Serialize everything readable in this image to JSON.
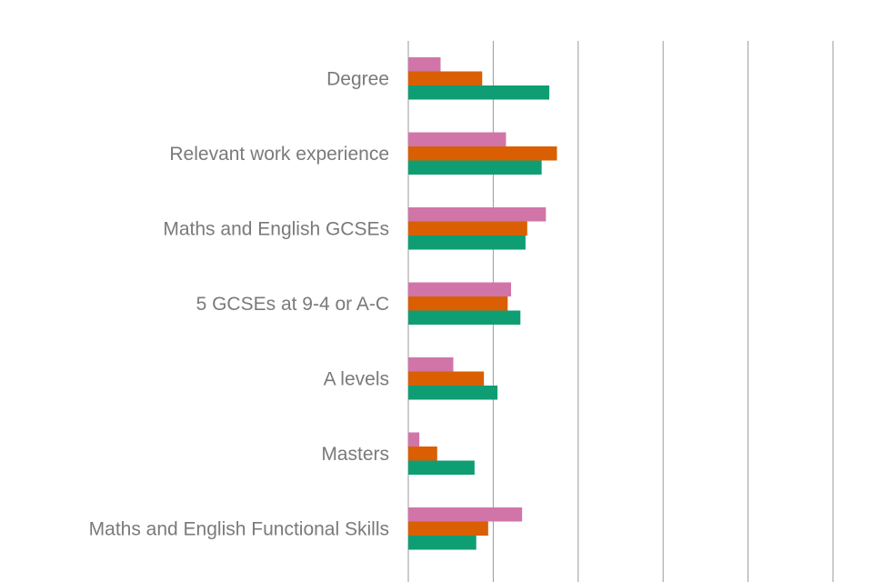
{
  "chart_data": {
    "type": "bar",
    "orientation": "horizontal",
    "categories": [
      "Degree",
      "Relevant work experience",
      "Maths and English GCSEs",
      "5 GCSEs at 9-4 or A-C",
      "A levels",
      "Masters",
      "Maths and English Functional Skills"
    ],
    "series": [
      {
        "color": "#d175a8",
        "values": [
          3.8,
          11.5,
          16.2,
          12.1,
          5.3,
          1.3,
          13.4
        ]
      },
      {
        "color": "#d95f02",
        "values": [
          8.7,
          17.5,
          14.0,
          11.7,
          8.9,
          3.4,
          9.4
        ]
      },
      {
        "color": "#0f9e74",
        "values": [
          16.6,
          15.7,
          13.8,
          13.2,
          10.5,
          7.8,
          8.0
        ]
      }
    ],
    "xlim": [
      0,
      50
    ],
    "x_gridlines": [
      0,
      10,
      20,
      30,
      40,
      50
    ],
    "grid": true,
    "legend": "none",
    "title": "",
    "xlabel": "",
    "ylabel": ""
  }
}
